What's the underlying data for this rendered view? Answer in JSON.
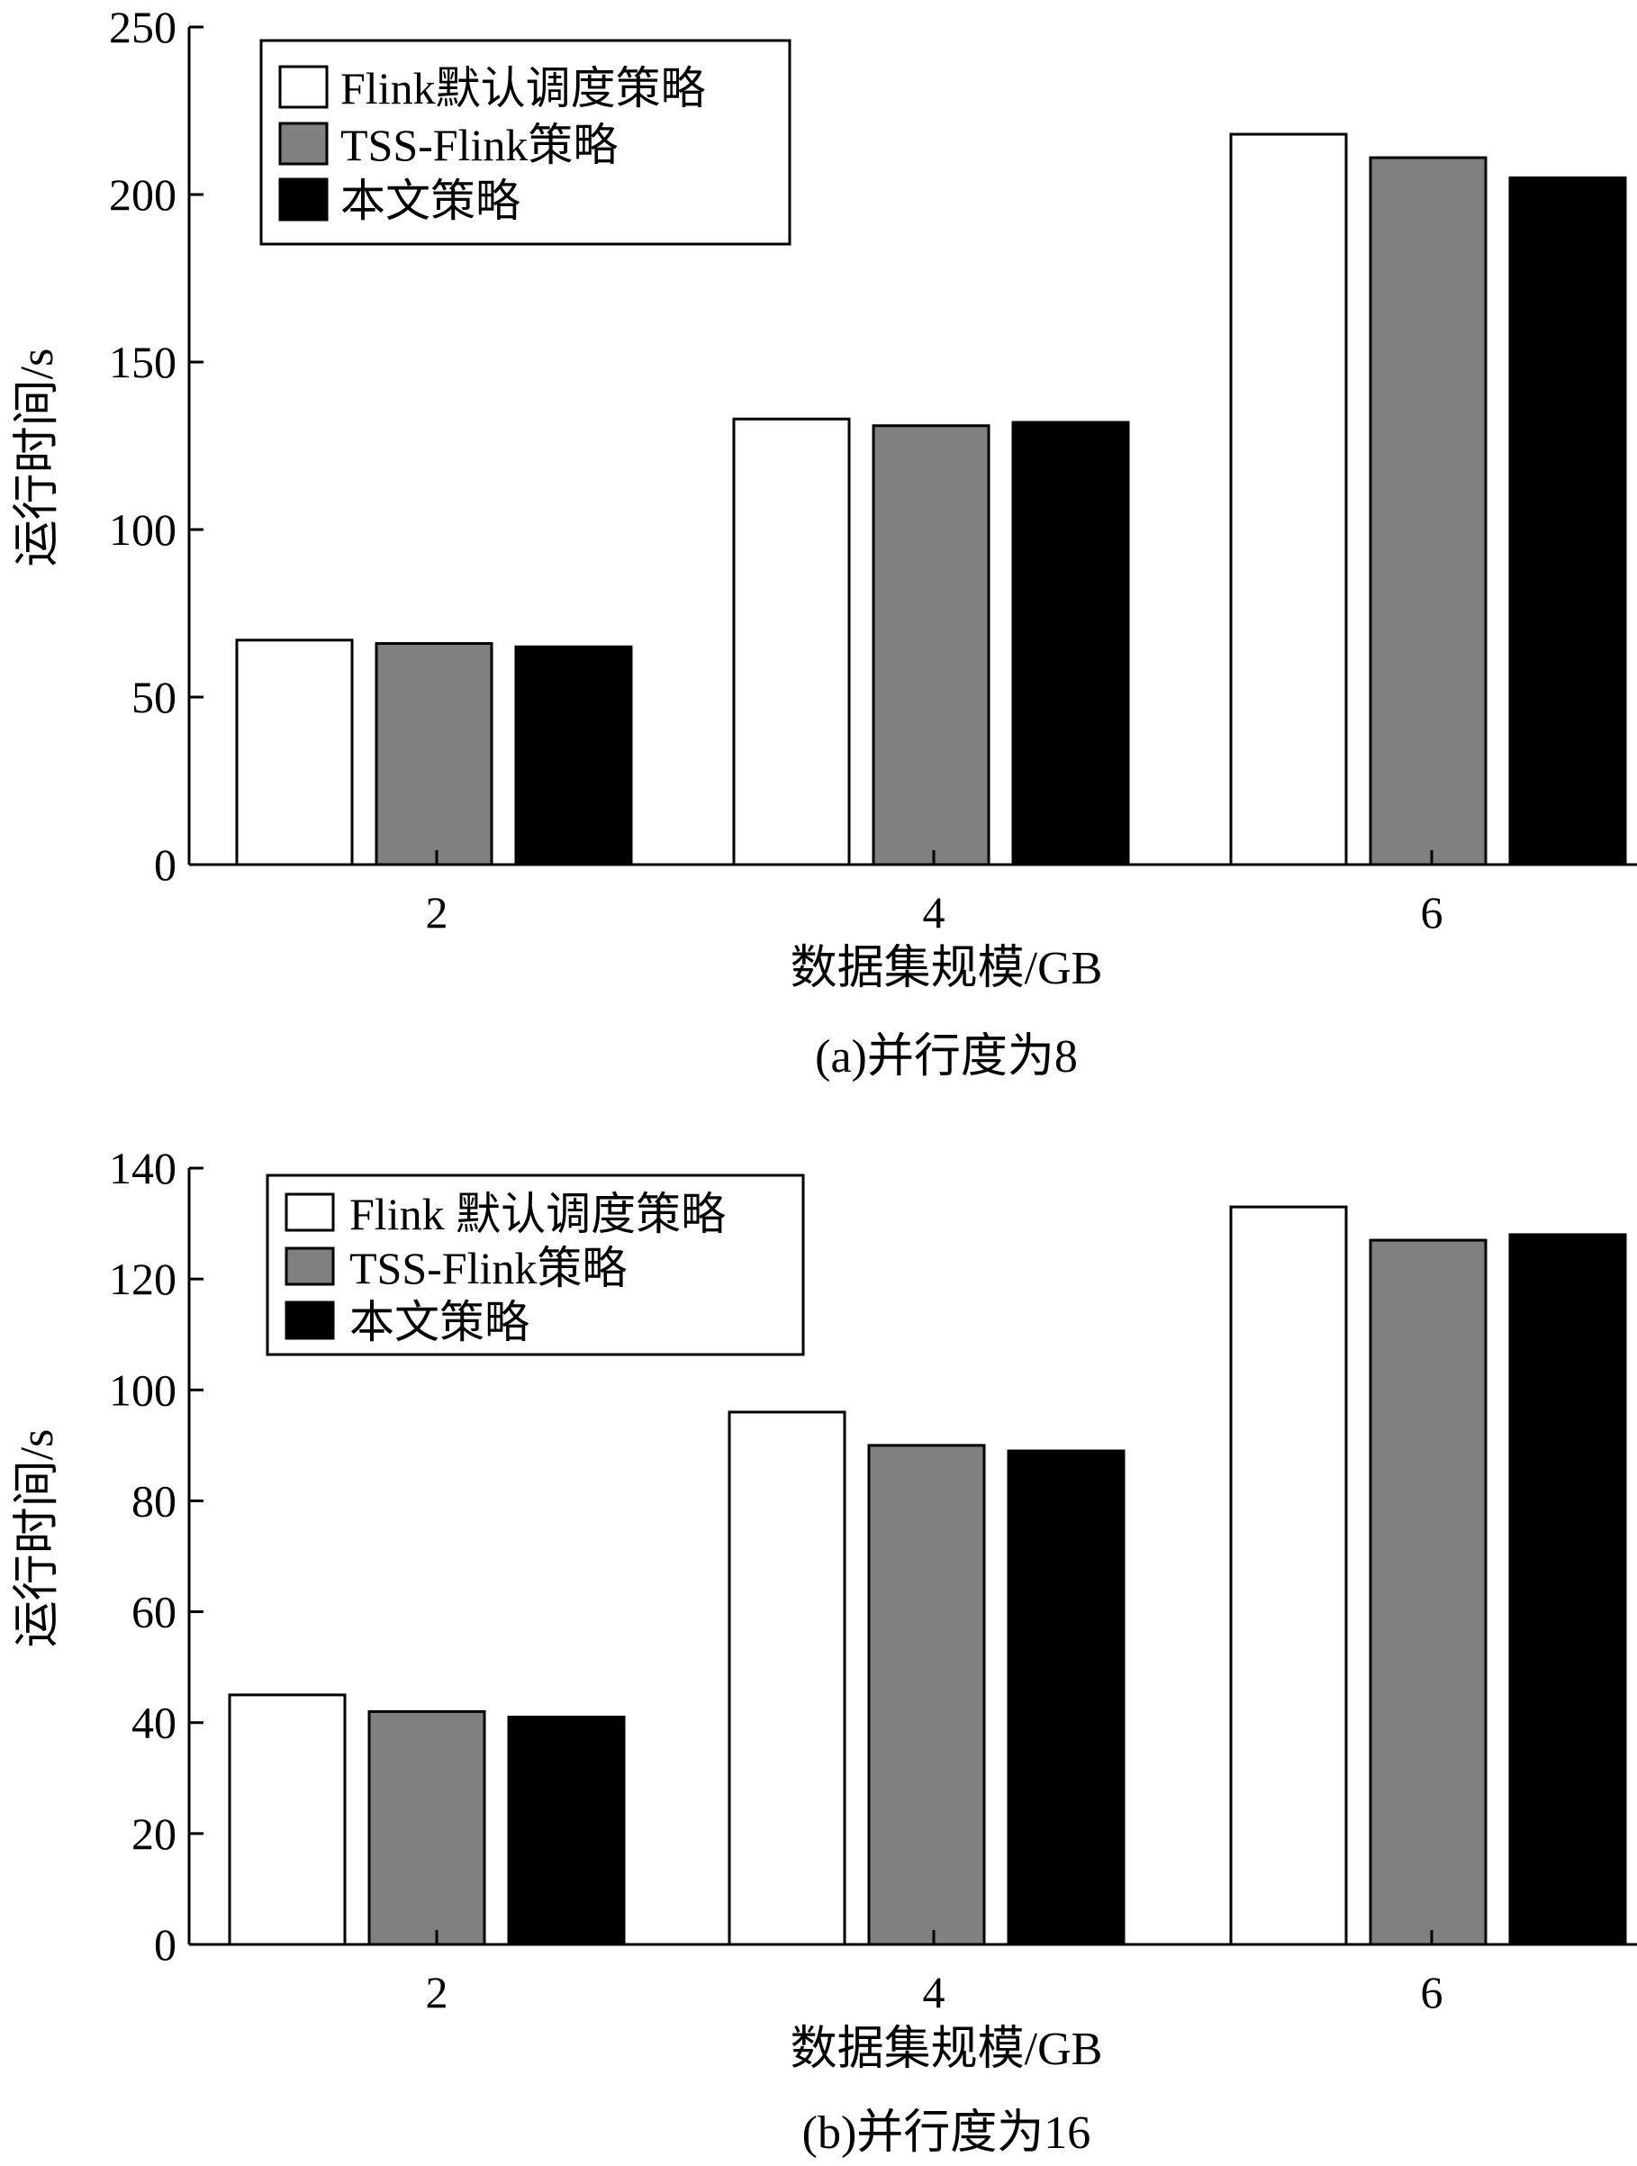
{
  "chart_data": [
    {
      "type": "bar",
      "categories": [
        "2",
        "4",
        "6"
      ],
      "series": [
        {
          "name": "Flink默认调度策略",
          "values": [
            67,
            133,
            218
          ]
        },
        {
          "name": "TSS-Flink策略",
          "values": [
            66,
            131,
            211
          ]
        },
        {
          "name": "本文策略",
          "values": [
            65,
            132,
            205
          ]
        }
      ],
      "colors": [
        "#ffffff",
        "#808080",
        "#000000"
      ],
      "xlabel": "数据集规模/GB",
      "ylabel": "运行时间/s",
      "caption": "(a)并行度为8",
      "ylim": [
        0,
        250
      ],
      "yticks": [
        "0",
        "50",
        "100",
        "150",
        "200",
        "250"
      ],
      "legend_position": "top-left",
      "grid": false
    },
    {
      "type": "bar",
      "categories": [
        "2",
        "4",
        "6"
      ],
      "series": [
        {
          "name": "Flink 默认调度策略",
          "values": [
            45,
            96,
            133
          ]
        },
        {
          "name": "TSS-Flink策略",
          "values": [
            42,
            90,
            127
          ]
        },
        {
          "name": "本文策略",
          "values": [
            41,
            89,
            128
          ]
        }
      ],
      "colors": [
        "#ffffff",
        "#808080",
        "#000000"
      ],
      "xlabel": "数据集规模/GB",
      "ylabel": "运行时间/s",
      "caption": "(b)并行度为16",
      "ylim": [
        0,
        140
      ],
      "yticks": [
        "0",
        "20",
        "40",
        "60",
        "80",
        "100",
        "120",
        "140"
      ],
      "legend_position": "top-left",
      "grid": false
    }
  ]
}
